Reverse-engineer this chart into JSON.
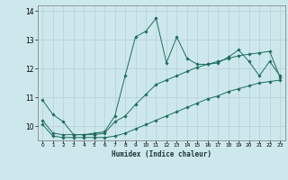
{
  "xlabel": "Humidex (Indice chaleur)",
  "bg_color": "#cde8ec",
  "grid_color": "#b8d4d8",
  "line_color": "#1e6b5e",
  "xlim": [
    -0.5,
    23.5
  ],
  "ylim": [
    9.5,
    14.2
  ],
  "yticks": [
    10,
    11,
    12,
    13,
    14
  ],
  "xticks": [
    0,
    1,
    2,
    3,
    4,
    5,
    6,
    7,
    8,
    9,
    10,
    11,
    12,
    13,
    14,
    15,
    16,
    17,
    18,
    19,
    20,
    21,
    22,
    23
  ],
  "series1_x": [
    0,
    1,
    2,
    3,
    4,
    5,
    6,
    7,
    8,
    9,
    10,
    11,
    12,
    13,
    14,
    15,
    16,
    17,
    18,
    19,
    20,
    21,
    22,
    23
  ],
  "series1_y": [
    10.9,
    10.4,
    10.15,
    9.7,
    9.7,
    9.75,
    9.8,
    10.35,
    11.75,
    13.1,
    13.3,
    13.75,
    12.2,
    13.1,
    12.35,
    12.15,
    12.15,
    12.2,
    12.4,
    12.65,
    12.25,
    11.75,
    12.25,
    11.75
  ],
  "series2_x": [
    0,
    1,
    2,
    3,
    4,
    5,
    6,
    7,
    8,
    9,
    10,
    11,
    12,
    13,
    14,
    15,
    16,
    17,
    18,
    19,
    20,
    21,
    22,
    23
  ],
  "series2_y": [
    10.2,
    9.75,
    9.7,
    9.7,
    9.7,
    9.7,
    9.75,
    10.15,
    10.35,
    10.75,
    11.1,
    11.45,
    11.6,
    11.75,
    11.9,
    12.05,
    12.15,
    12.25,
    12.35,
    12.45,
    12.5,
    12.55,
    12.6,
    11.7
  ],
  "series3_x": [
    0,
    1,
    2,
    3,
    4,
    5,
    6,
    7,
    8,
    9,
    10,
    11,
    12,
    13,
    14,
    15,
    16,
    17,
    18,
    19,
    20,
    21,
    22,
    23
  ],
  "series3_y": [
    10.05,
    9.65,
    9.6,
    9.6,
    9.6,
    9.6,
    9.6,
    9.65,
    9.75,
    9.9,
    10.05,
    10.2,
    10.35,
    10.5,
    10.65,
    10.8,
    10.95,
    11.05,
    11.2,
    11.3,
    11.4,
    11.5,
    11.55,
    11.6
  ]
}
